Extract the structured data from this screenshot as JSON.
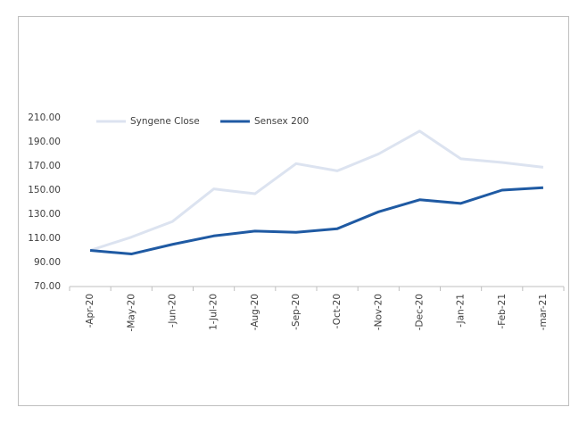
{
  "chart_data": {
    "type": "line",
    "categories": [
      "-Apr-20",
      "-May-20",
      "-Jun-20",
      "1-Jul-20",
      "-Aug-20",
      "-Sep-20",
      "-Oct-20",
      "-Nov-20",
      "-Dec-20",
      "-Jan-21",
      "-Feb-21",
      "-mar-21"
    ],
    "series": [
      {
        "name": "Syngene Close",
        "color": "#dce3f0",
        "values": [
          100,
          111,
          124,
          151,
          147,
          172,
          166,
          180,
          199,
          176,
          173,
          169
        ]
      },
      {
        "name": "Sensex 200",
        "color": "#1f5aa3",
        "values": [
          100,
          97,
          105,
          112,
          116,
          115,
          118,
          132,
          142,
          139,
          150,
          152
        ]
      }
    ],
    "ylim": [
      70,
      210
    ],
    "yticks": [
      {
        "value": 70,
        "label": "70.00"
      },
      {
        "value": 90,
        "label": "90.00"
      },
      {
        "value": 110,
        "label": "110.00"
      },
      {
        "value": 130,
        "label": "130.00"
      },
      {
        "value": 150,
        "label": "150.00"
      },
      {
        "value": 170,
        "label": "170.00"
      },
      {
        "value": 190,
        "label": "190.00"
      },
      {
        "value": 210,
        "label": "210.00"
      }
    ],
    "legend": "top"
  }
}
